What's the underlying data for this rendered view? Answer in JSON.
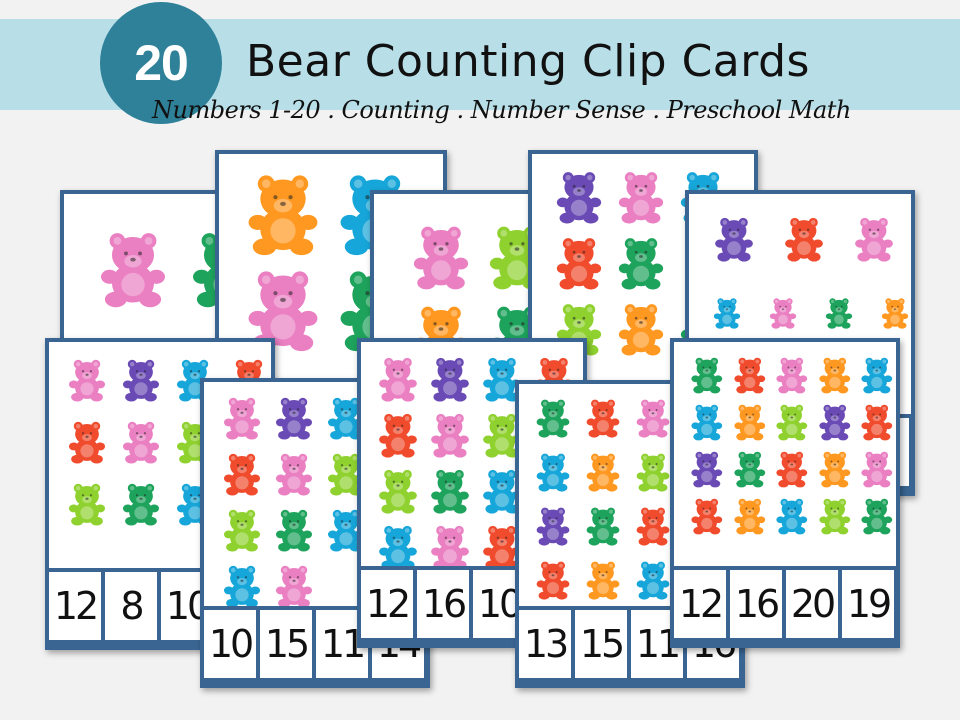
{
  "header": {
    "count": "20",
    "title": "Bear Counting Clip Cards",
    "subtitle": "Numbers 1-20 . Counting . Number Sense . Preschool Math"
  },
  "colors": {
    "band": "#b8dfe8",
    "circle": "#2e8199",
    "card_border": "#3a6593",
    "pink": "#ea7fc2",
    "orange": "#ff9820",
    "blue": "#17a6d9",
    "green": "#1ea35c",
    "lime": "#8fd12e",
    "purple": "#6a4ab4",
    "red": "#f04b2d"
  },
  "cards": [
    {
      "id": "a",
      "bears": [
        [
          "pink",
          "green"
        ]
      ],
      "numbers": []
    },
    {
      "id": "b",
      "bears": [
        [
          "orange",
          "blue"
        ],
        [
          "pink",
          "green"
        ]
      ],
      "numbers": []
    },
    {
      "id": "c",
      "bears": [
        [
          "pink",
          "lime"
        ],
        [
          "orange",
          "green"
        ]
      ],
      "numbers": []
    },
    {
      "id": "d",
      "bears": [
        [
          "purple",
          "pink",
          "blue"
        ],
        [
          "red",
          "green"
        ],
        [
          "lime",
          "orange",
          "green"
        ]
      ],
      "numbers": []
    },
    {
      "id": "e",
      "bears": [
        [
          "purple",
          "red",
          "pink"
        ],
        [
          "blue",
          "pink",
          "green",
          "orange"
        ]
      ],
      "numbers": []
    },
    {
      "id": "f",
      "bears": [
        [
          "pink",
          "purple",
          "blue",
          "red"
        ],
        [
          "red",
          "pink",
          "lime",
          "blue"
        ],
        [
          "lime",
          "green",
          "blue",
          "red"
        ]
      ],
      "numbers": [
        "12",
        "8",
        "10"
      ]
    },
    {
      "id": "g",
      "bears": [
        [
          "pink",
          "purple",
          "blue"
        ],
        [
          "red",
          "pink",
          "lime"
        ],
        [
          "lime",
          "green",
          "blue"
        ],
        [
          "blue",
          "pink"
        ]
      ],
      "numbers": [
        "10",
        "15",
        "11",
        "14"
      ]
    },
    {
      "id": "h",
      "bears": [
        [
          "pink",
          "purple",
          "blue",
          "red"
        ],
        [
          "red",
          "pink",
          "lime",
          "blue"
        ],
        [
          "lime",
          "green",
          "blue",
          "red"
        ],
        [
          "blue",
          "pink",
          "red",
          "green"
        ]
      ],
      "numbers": [
        "12",
        "16",
        "10"
      ]
    },
    {
      "id": "i",
      "bears": [
        [
          "green",
          "red",
          "pink",
          "orange"
        ],
        [
          "blue",
          "orange",
          "lime",
          "purple"
        ],
        [
          "purple",
          "green",
          "red",
          "orange"
        ],
        [
          "red",
          "orange",
          "blue"
        ]
      ],
      "numbers": [
        "13",
        "15",
        "11",
        "16"
      ]
    },
    {
      "id": "j",
      "bears": [
        [
          "green",
          "red",
          "pink",
          "orange",
          "blue"
        ],
        [
          "blue",
          "orange",
          "lime",
          "purple",
          "red"
        ],
        [
          "purple",
          "green",
          "red",
          "orange",
          "pink"
        ],
        [
          "red",
          "orange",
          "blue",
          "lime",
          "green"
        ]
      ],
      "numbers": [
        "12",
        "16",
        "20",
        "19"
      ]
    }
  ]
}
